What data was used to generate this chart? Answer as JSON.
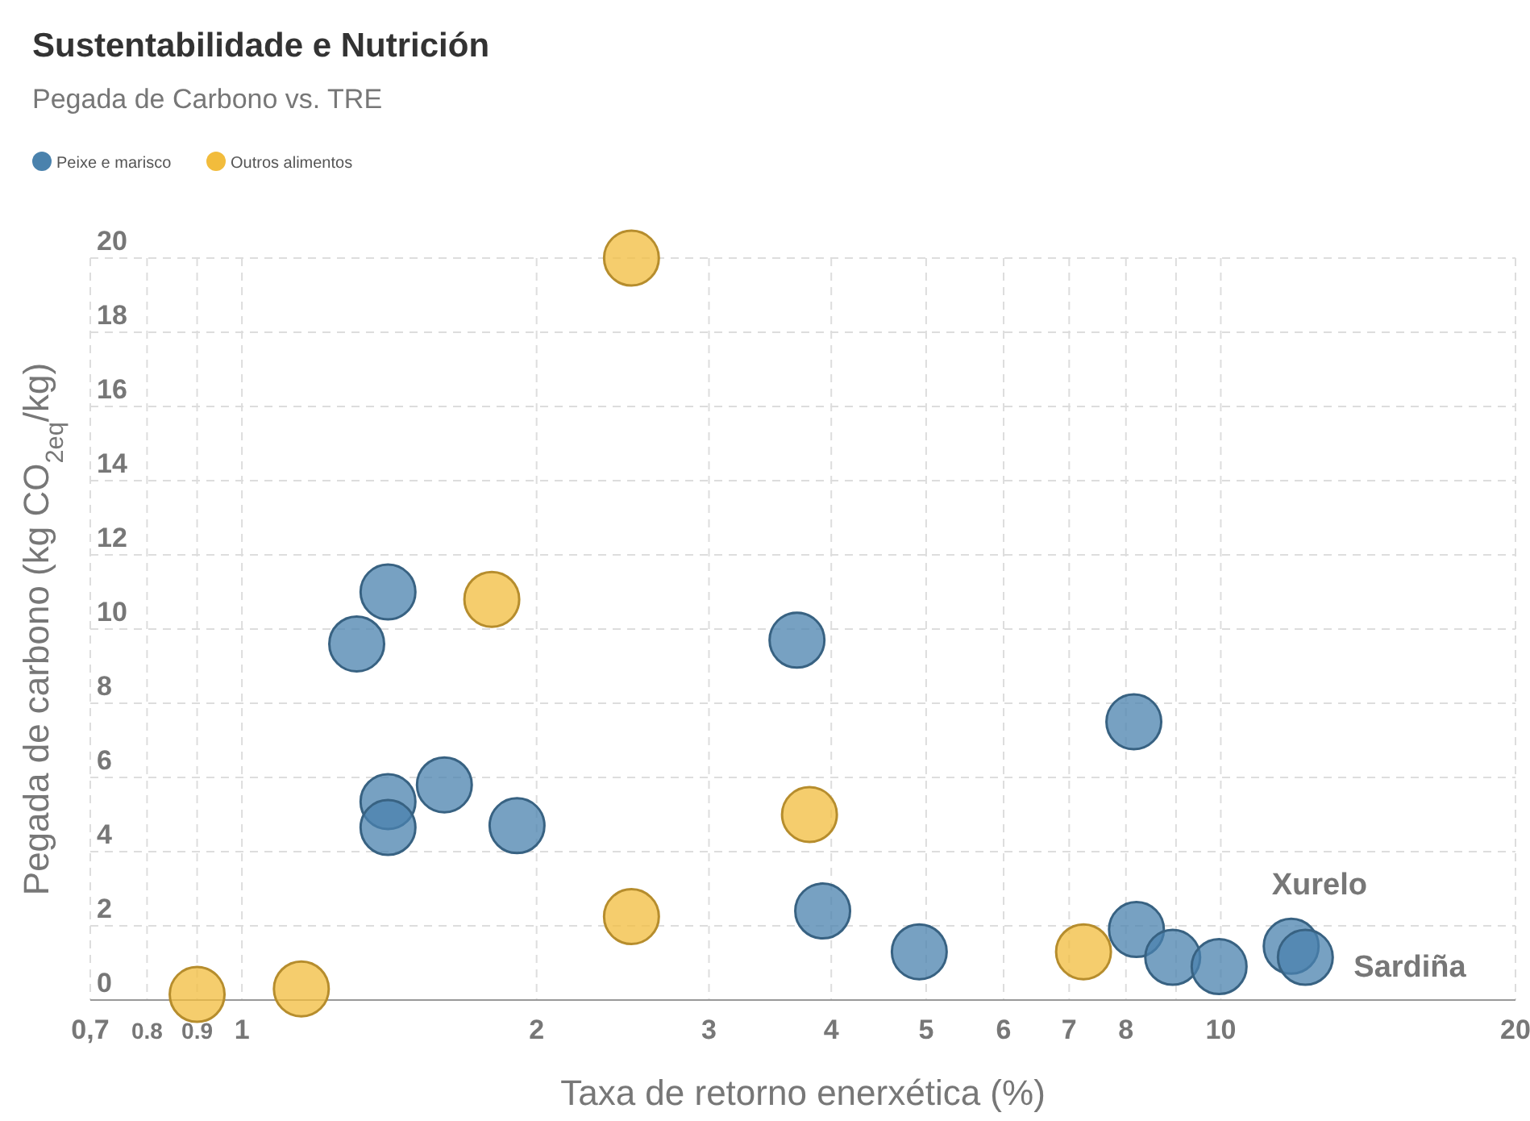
{
  "chart_data": {
    "type": "scatter",
    "title": "Sustentabilidade e Nutrición",
    "subtitle": "Pegada de Carbono vs. TRE",
    "xlabel": "Taxa de retorno enerxética (%)",
    "ylabel": "Pegada de carbono (kg CO$_{2eq}$/kg)",
    "log": "x",
    "grid": true,
    "legend": "top left",
    "marker": "circle",
    "xlim": [
      0.7,
      20
    ],
    "xticks": [
      {
        "value": 0.7,
        "label": "0,7"
      },
      {
        "value": 0.8,
        "label": "0.8"
      },
      {
        "value": 0.9,
        "label": "0.9"
      },
      1,
      2,
      3,
      4,
      5,
      6,
      7,
      8,
      {
        "value": 9,
        "label": null
      },
      10,
      20
    ],
    "ylim": [
      0,
      20
    ],
    "yticks": [
      0,
      2,
      4,
      6,
      8,
      10,
      12,
      14,
      16,
      18,
      20
    ],
    "series": [
      {
        "name": "Peixe e marisco",
        "color": "#4a82ad",
        "x": [
          1.31,
          1.41,
          1.41,
          1.41,
          1.61,
          1.91,
          3.69,
          3.92,
          4.92,
          8.15,
          8.2,
          8.93,
          9.96,
          11.8,
          12.2
        ],
        "values": [
          9.6,
          11.0,
          5.35,
          4.65,
          5.8,
          4.7,
          9.7,
          2.4,
          1.3,
          7.5,
          1.9,
          1.15,
          0.9,
          1.45,
          1.15
        ]
      },
      {
        "name": "Outros alimentos",
        "color": "#f2bc3c",
        "x": [
          2.5,
          1.8,
          2.5,
          3.8,
          7.24,
          0.9,
          1.15
        ],
        "values": [
          20.0,
          10.8,
          2.25,
          5.0,
          1.3,
          0.15,
          0.3
        ]
      }
    ],
    "annotations": [
      {
        "text": "Xurelo",
        "x": 11.8,
        "y": 1.45
      },
      {
        "text": "Sardiña",
        "x": 12.2,
        "y": 1.15
      }
    ]
  }
}
